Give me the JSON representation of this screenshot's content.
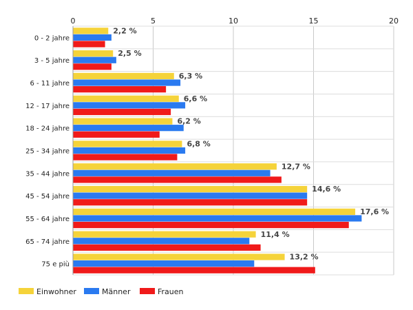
{
  "chart_data": {
    "type": "bar",
    "orientation": "horizontal",
    "categories": [
      "0 - 2 jahre",
      "3 - 5 jahre",
      "6 - 11 jahre",
      "12 - 17 jahre",
      "18 - 24 jahre",
      "25 - 34 jahre",
      "35 - 44 jahre",
      "45 - 54 jahre",
      "55 - 64 jahre",
      "65 - 74 jahre",
      "75 e più"
    ],
    "series": [
      {
        "name": "Einwohner",
        "color": "#f5d33a",
        "values": [
          2.2,
          2.5,
          6.3,
          6.6,
          6.2,
          6.8,
          12.7,
          14.6,
          17.6,
          11.4,
          13.2
        ]
      },
      {
        "name": "Männer",
        "color": "#2a7af0",
        "values": [
          2.4,
          2.7,
          6.7,
          7.0,
          6.9,
          7.0,
          12.3,
          14.6,
          18.0,
          11.0,
          11.3
        ]
      },
      {
        "name": "Frauen",
        "color": "#f01a1a",
        "values": [
          2.0,
          2.4,
          5.8,
          6.1,
          5.4,
          6.5,
          13.0,
          14.6,
          17.2,
          11.7,
          15.1
        ]
      }
    ],
    "data_labels": [
      "2,2 %",
      "2,5 %",
      "6,3 %",
      "6,6 %",
      "6,2 %",
      "6,8 %",
      "12,7 %",
      "14,6 %",
      "17,6 %",
      "11,4 %",
      "13,2 %"
    ],
    "xlim": [
      0,
      20
    ],
    "xticks": [
      0,
      5,
      10,
      15,
      20
    ],
    "xtick_labels": [
      "0",
      "5",
      "10",
      "15",
      "20"
    ],
    "x_axis_position": "top",
    "grid": true,
    "legend_position": "bottom-left",
    "title": "",
    "xlabel": "",
    "ylabel": ""
  }
}
